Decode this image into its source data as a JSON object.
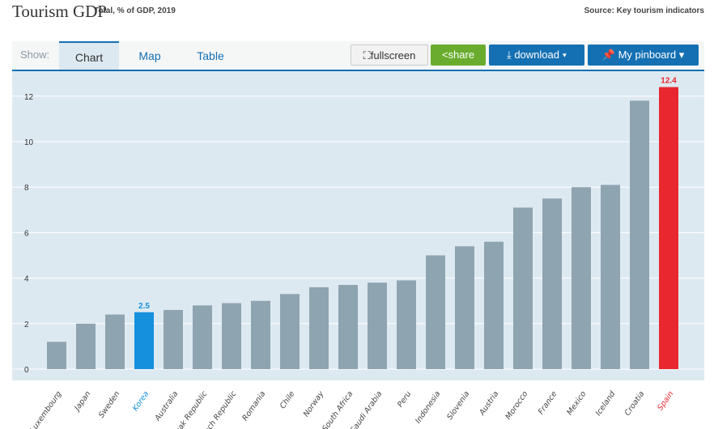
{
  "header": {
    "title": "Tourism GDP",
    "subtitle": "Total, % of GDP, 2019",
    "source": "Source: Key tourism indicators"
  },
  "toolbar": {
    "show_label": "Show:",
    "tabs": [
      {
        "label": "Chart",
        "active": true
      },
      {
        "label": "Map"
      },
      {
        "label": "Table"
      }
    ],
    "fullscreen": "fullscreen",
    "share": "share",
    "download": "download ▾",
    "pinboard": "My pinboard ▾"
  },
  "colors": {
    "bar": "#8fa4b1",
    "highlight_korea": "#1590dd",
    "highlight_spain": "#e8272f",
    "background": "#dde9f1"
  },
  "chart_data": {
    "type": "bar",
    "categories": [
      "Luxembourg",
      "Japan",
      "Sweden",
      "Korea",
      "Australia",
      "Slovak Republic",
      "Czech Republic",
      "Romania",
      "Chile",
      "Norway",
      "South Africa",
      "Saudi Arabia",
      "Peru",
      "Indonesia",
      "Slovenia",
      "Austria",
      "Morocco",
      "France",
      "Mexico",
      "Iceland",
      "Croatia",
      "Spain"
    ],
    "values": [
      1.2,
      2.0,
      2.4,
      2.5,
      2.6,
      2.8,
      2.9,
      3.0,
      3.3,
      3.6,
      3.7,
      3.8,
      3.9,
      5.0,
      5.4,
      5.6,
      7.1,
      7.5,
      8.0,
      8.1,
      11.8,
      12.4
    ],
    "data_labels": {
      "Korea": "2.5",
      "Spain": "12.4"
    },
    "highlighted": {
      "Korea": "#1590dd",
      "Spain": "#e8272f"
    },
    "yticks": [
      "0",
      "2",
      "4",
      "6",
      "8",
      "10",
      "12"
    ],
    "ylim": [
      0,
      13
    ],
    "grid": true
  }
}
